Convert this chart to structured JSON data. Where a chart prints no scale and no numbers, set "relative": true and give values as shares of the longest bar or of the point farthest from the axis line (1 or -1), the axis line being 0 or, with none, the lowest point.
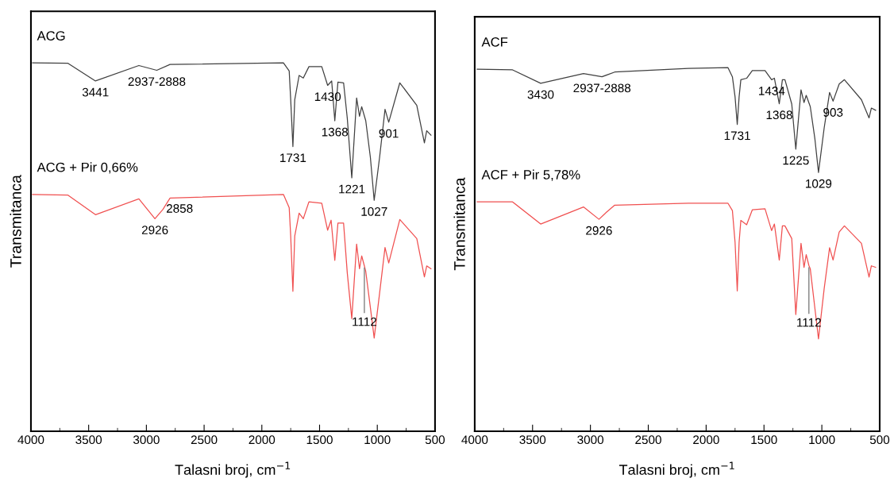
{
  "chart_data": [
    {
      "type": "line",
      "relative": true,
      "xlabel": "Talasni broj, cm$^{−1}$",
      "ylabel": "Transmitanca",
      "tick_labels": "x",
      "grid": false,
      "legend": false,
      "marker": "none",
      "line_style": "solid",
      "xlim": [
        4000,
        500
      ],
      "xticks": [
        4000,
        {
          "value": 3750,
          "label": null
        },
        3500,
        {
          "value": 3250,
          "label": null
        },
        3000,
        {
          "value": 2750,
          "label": null
        },
        2500,
        {
          "value": 2250,
          "label": null
        },
        2000,
        {
          "value": 1750,
          "label": null
        },
        1500,
        {
          "value": 1250,
          "label": null
        },
        1000,
        {
          "value": 750,
          "label": null
        },
        500
      ],
      "series": [
        {
          "name": "ACG",
          "color": "#404040",
          "x": [
            3986,
            3679,
            3441,
            3065,
            2910,
            2795,
            1813,
            1763,
            1750,
            1731,
            1715,
            1677,
            1641,
            1592,
            1481,
            1430,
            1395,
            1368,
            1341,
            1292,
            1260,
            1221,
            1179,
            1154,
            1135,
            1100,
            1060,
            1027,
            980,
            933,
            901,
            805,
            658,
            592,
            572,
            535
          ],
          "values": [
            1.0,
            0.999,
            0.951,
            0.993,
            0.98,
            0.996,
            1.0,
            0.978,
            0.9,
            0.773,
            0.9,
            0.966,
            0.959,
            0.99,
            0.99,
            0.939,
            0.951,
            0.843,
            0.948,
            0.946,
            0.85,
            0.688,
            0.905,
            0.855,
            0.881,
            0.843,
            0.744,
            0.627,
            0.744,
            0.874,
            0.839,
            0.946,
            0.885,
            0.783,
            0.816,
            0.804
          ]
        },
        {
          "name": "ACG + Pir 0,66%",
          "color": "#f05050",
          "x": [
            3986,
            3679,
            3441,
            3065,
            2926,
            2858,
            2795,
            1813,
            1763,
            1750,
            1731,
            1715,
            1677,
            1641,
            1592,
            1481,
            1430,
            1400,
            1368,
            1341,
            1292,
            1260,
            1221,
            1179,
            1154,
            1135,
            1112,
            1100,
            1060,
            1027,
            980,
            933,
            901,
            805,
            658,
            592,
            572,
            535
          ],
          "values": [
            0.643,
            0.641,
            0.588,
            0.631,
            0.577,
            0.602,
            0.633,
            0.643,
            0.607,
            0.53,
            0.38,
            0.53,
            0.592,
            0.577,
            0.623,
            0.619,
            0.546,
            0.573,
            0.464,
            0.565,
            0.565,
            0.43,
            0.306,
            0.508,
            0.441,
            0.476,
            0.449,
            0.434,
            0.336,
            0.253,
            0.375,
            0.499,
            0.457,
            0.575,
            0.523,
            0.419,
            0.449,
            0.441
          ]
        }
      ],
      "annotations": [
        {
          "text": "3441",
          "x": 3441,
          "y": 0.951
        },
        {
          "text": "2937-2888",
          "x": 2910,
          "y": 0.98
        },
        {
          "text": "1430",
          "x": 1430,
          "y": 0.939
        },
        {
          "text": "1368",
          "x": 1368,
          "y": 0.843
        },
        {
          "text": "1731",
          "x": 1731,
          "y": 0.773
        },
        {
          "text": "901",
          "x": 901,
          "y": 0.839
        },
        {
          "text": "1221",
          "x": 1221,
          "y": 0.688
        },
        {
          "text": "1027",
          "x": 1027,
          "y": 0.627
        },
        {
          "text": "2926",
          "x": 2926,
          "y": 0.577
        },
        {
          "text": "2858",
          "x": 2858,
          "y": 0.602
        },
        {
          "text": "1112",
          "x": 1112,
          "y": 0.449
        }
      ]
    },
    {
      "type": "line",
      "relative": true,
      "xlabel": "Talasni broj, cm$^{−1}$",
      "ylabel": "Transmitanca",
      "tick_labels": "x",
      "grid": false,
      "legend": false,
      "marker": "none",
      "line_style": "solid",
      "xlim": [
        4000,
        500
      ],
      "xticks": [
        4000,
        {
          "value": 3750,
          "label": null
        },
        3500,
        {
          "value": 3250,
          "label": null
        },
        3000,
        {
          "value": 2750,
          "label": null
        },
        2500,
        {
          "value": 2250,
          "label": null
        },
        2000,
        {
          "value": 1750,
          "label": null
        },
        1500,
        {
          "value": 1250,
          "label": null
        },
        1000,
        {
          "value": 750,
          "label": null
        },
        500
      ],
      "series": [
        {
          "name": "ACF",
          "color": "#404040",
          "x": [
            3979,
            3673,
            3430,
            3060,
            2900,
            2790,
            2154,
            1811,
            1773,
            1750,
            1731,
            1715,
            1700,
            1650,
            1601,
            1491,
            1434,
            1410,
            1368,
            1341,
            1319,
            1260,
            1225,
            1180,
            1154,
            1135,
            1100,
            1060,
            1029,
            980,
            933,
            903,
            850,
            805,
            658,
            592,
            572,
            535
          ],
          "values": [
            0.996,
            0.994,
            0.957,
            0.984,
            0.975,
            0.988,
            0.998,
            1.0,
            0.975,
            0.92,
            0.844,
            0.92,
            0.967,
            0.971,
            0.992,
            0.992,
            0.967,
            0.971,
            0.901,
            0.967,
            0.967,
            0.9,
            0.776,
            0.939,
            0.904,
            0.924,
            0.893,
            0.804,
            0.712,
            0.834,
            0.932,
            0.908,
            0.955,
            0.967,
            0.912,
            0.862,
            0.889,
            0.883
          ]
        },
        {
          "name": "ACF + Pir 5,78%",
          "color": "#f05050",
          "x": [
            3979,
            3673,
            3430,
            3060,
            2926,
            2860,
            2790,
            2154,
            1811,
            1773,
            1750,
            1731,
            1715,
            1700,
            1650,
            1601,
            1491,
            1434,
            1410,
            1368,
            1341,
            1319,
            1260,
            1225,
            1180,
            1154,
            1135,
            1112,
            1100,
            1060,
            1029,
            980,
            933,
            903,
            850,
            805,
            658,
            592,
            572,
            535
          ],
          "values": [
            0.631,
            0.631,
            0.57,
            0.617,
            0.583,
            0.603,
            0.622,
            0.627,
            0.627,
            0.607,
            0.52,
            0.386,
            0.52,
            0.58,
            0.568,
            0.609,
            0.612,
            0.552,
            0.57,
            0.471,
            0.565,
            0.565,
            0.53,
            0.321,
            0.517,
            0.451,
            0.486,
            0.456,
            0.447,
            0.338,
            0.254,
            0.392,
            0.505,
            0.471,
            0.548,
            0.565,
            0.517,
            0.424,
            0.455,
            0.451
          ]
        }
      ],
      "annotations": [
        {
          "text": "3430",
          "x": 3430,
          "y": 0.957
        },
        {
          "text": "2937-2888",
          "x": 2900,
          "y": 0.975
        },
        {
          "text": "1434",
          "x": 1434,
          "y": 0.967
        },
        {
          "text": "1368",
          "x": 1368,
          "y": 0.901
        },
        {
          "text": "1731",
          "x": 1731,
          "y": 0.844
        },
        {
          "text": "1225",
          "x": 1225,
          "y": 0.776
        },
        {
          "text": "903",
          "x": 903,
          "y": 0.908
        },
        {
          "text": "1029",
          "x": 1029,
          "y": 0.712
        },
        {
          "text": "2926",
          "x": 2926,
          "y": 0.583
        },
        {
          "text": "1112",
          "x": 1112,
          "y": 0.456
        }
      ]
    }
  ]
}
